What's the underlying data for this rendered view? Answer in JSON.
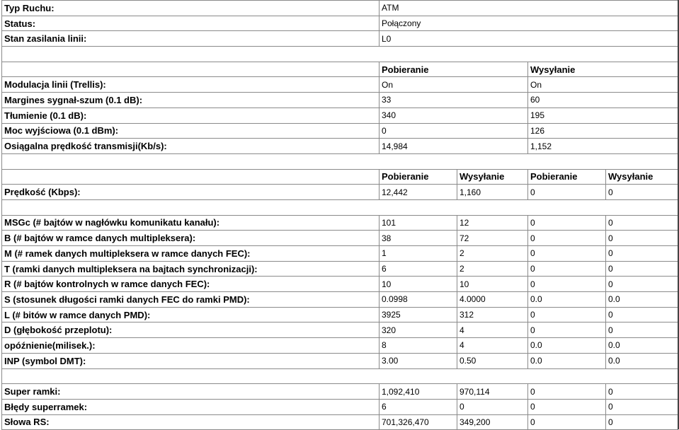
{
  "status_section": [
    {
      "label": "Typ Ruchu:",
      "value": "ATM"
    },
    {
      "label": "Status:",
      "value": "Połączony"
    },
    {
      "label": "Stan zasilania linii:",
      "value": "L0"
    }
  ],
  "line_section": {
    "headers": [
      "Pobieranie",
      "Wysyłanie"
    ],
    "rows": [
      {
        "label": "Modulacja linii (Trellis):",
        "values": [
          "On",
          "On"
        ]
      },
      {
        "label": "Margines sygnał-szum (0.1 dB):",
        "values": [
          "33",
          "60"
        ]
      },
      {
        "label": "Tłumienie (0.1 dB):",
        "values": [
          "340",
          "195"
        ]
      },
      {
        "label": "Moc wyjściowa (0.1 dBm):",
        "values": [
          "0",
          "126"
        ]
      },
      {
        "label": "Osiągalna prędkość transmisji(Kb/s):",
        "values": [
          "14,984",
          "1,152"
        ]
      }
    ]
  },
  "rate_section": {
    "headers": [
      "Pobieranie",
      "Wysyłanie",
      "Pobieranie",
      "Wysyłanie"
    ],
    "rows": [
      {
        "label": "Prędkość (Kbps):",
        "values": [
          "12,442",
          "1,160",
          "0",
          "0"
        ]
      }
    ]
  },
  "framing_section": {
    "rows": [
      {
        "label": "MSGc (# bajtów w nagłówku komunikatu kanału):",
        "values": [
          "101",
          "12",
          "0",
          "0"
        ]
      },
      {
        "label": "B (# bajtów w ramce danych multipleksera):",
        "values": [
          "38",
          "72",
          "0",
          "0"
        ]
      },
      {
        "label": "M (# ramek danych multipleksera w ramce danych FEC):",
        "values": [
          "1",
          "2",
          "0",
          "0"
        ]
      },
      {
        "label": "T (ramki danych multipleksera na bajtach synchronizacji):",
        "values": [
          "6",
          "2",
          "0",
          "0"
        ]
      },
      {
        "label": "R (# bajtów kontrolnych w ramce danych FEC):",
        "values": [
          "10",
          "10",
          "0",
          "0"
        ]
      },
      {
        "label": "S (stosunek długości ramki danych FEC do ramki PMD):",
        "values": [
          "0.0998",
          "4.0000",
          "0.0",
          "0.0"
        ]
      },
      {
        "label": "L (# bitów w ramce danych PMD):",
        "values": [
          "3925",
          "312",
          "0",
          "0"
        ]
      },
      {
        "label": "D (głębokość przeplotu):",
        "values": [
          "320",
          "4",
          "0",
          "0"
        ]
      },
      {
        "label": "opóźnienie(milisek.):",
        "values": [
          "8",
          "4",
          "0.0",
          "0.0"
        ]
      },
      {
        "label": "INP (symbol DMT):",
        "values": [
          "3.00",
          "0.50",
          "0.0",
          "0.0"
        ]
      }
    ]
  },
  "counters_section": {
    "rows": [
      {
        "label": "Super ramki:",
        "values": [
          "1,092,410",
          "970,114",
          "0",
          "0"
        ]
      },
      {
        "label": "Błędy superramek:",
        "values": [
          "6",
          "0",
          "0",
          "0"
        ]
      },
      {
        "label": "Słowa RS:",
        "values": [
          "701,326,470",
          "349,200",
          "0",
          "0"
        ]
      }
    ]
  }
}
